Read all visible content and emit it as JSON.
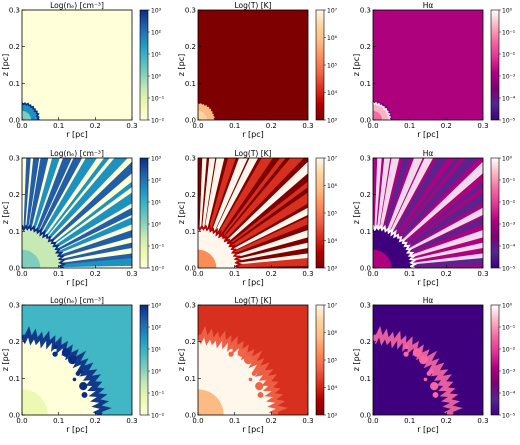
{
  "figure": {
    "columns": [
      {
        "title": "Log(nₑ) [cm⁻³]",
        "key": "density",
        "colorbar": {
          "labels": [
            "10³",
            "10²",
            "10¹",
            "10⁰",
            "10⁻¹",
            "10⁻²"
          ]
        }
      },
      {
        "title": "Log(T) [K]",
        "key": "temperature",
        "colorbar": {
          "labels": [
            "10⁷",
            "10⁶",
            "10⁵",
            "10⁴",
            "10³"
          ]
        }
      },
      {
        "title": "Hα",
        "key": "halpha",
        "colorbar": {
          "labels": [
            "10⁰",
            "10⁻¹",
            "10⁻²",
            "10⁻³",
            "10⁻⁴",
            "10⁻⁵"
          ]
        }
      }
    ],
    "rows": [
      {
        "stage": "early"
      },
      {
        "stage": "fingers"
      },
      {
        "stage": "late"
      }
    ],
    "axes": {
      "xlabel": "r [pc]",
      "ylabel": "z [pc]",
      "x_ticks": [
        "0.0",
        "0.1",
        "0.2",
        "0.3"
      ],
      "y_ticks": [
        "0.0",
        "0.1",
        "0.2",
        "0.3"
      ]
    },
    "colormaps": {
      "density": [
        "#ffffd9",
        "#edf8b1",
        "#c7e9b4",
        "#7fcdbb",
        "#41b6c4",
        "#1d91c0",
        "#225ea8",
        "#0c2c84"
      ],
      "temperature": [
        "#7f0000",
        "#b30000",
        "#d7301f",
        "#ef6548",
        "#fc8d59",
        "#fdbb84",
        "#fdd49e",
        "#fff7ec"
      ],
      "halpha": [
        "#3f007d",
        "#54278f",
        "#7a0177",
        "#ae017e",
        "#dd3497",
        "#f768a1",
        "#fbb4c3",
        "#ffffff"
      ]
    }
  }
}
